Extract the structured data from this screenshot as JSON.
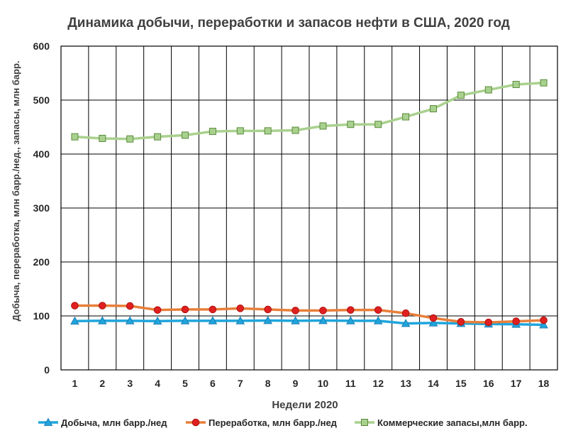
{
  "chart_data": {
    "type": "line",
    "title": "Динамика добычи, переработки и запасов нефти в США, 2020 год",
    "xlabel": "Недели 2020",
    "ylabel": "Добыча, переработка, млн барр./нед., запасы, млн барр.",
    "ylim": [
      0,
      600
    ],
    "yticks": [
      "0",
      "100",
      "200",
      "300",
      "400",
      "500",
      "600"
    ],
    "categories": [
      "1",
      "2",
      "3",
      "4",
      "5",
      "6",
      "7",
      "8",
      "9",
      "10",
      "11",
      "12",
      "13",
      "14",
      "15",
      "16",
      "17",
      "18"
    ],
    "grid": true,
    "legend_position": "bottom",
    "series": [
      {
        "name": "Добыча, млн барр./нед",
        "color": "#1fa5dc",
        "marker": "triangle",
        "values": [
          90.5,
          91,
          91,
          90.5,
          91,
          91,
          91,
          91.5,
          91,
          91.5,
          91,
          91,
          86,
          87,
          86,
          85,
          84.5,
          83.5
        ]
      },
      {
        "name": "Переработка, млн барр./нед",
        "color": "#e87f3a",
        "marker_color": "#e02020",
        "marker": "circle",
        "values": [
          119,
          119,
          118.5,
          111,
          112,
          112,
          114,
          112,
          110,
          110,
          111,
          111,
          105,
          96,
          89,
          88,
          90,
          92
        ]
      },
      {
        "name": "Коммерческие запасы,млн барр.",
        "color": "#a9d18e",
        "marker_color": "#a9d18e",
        "marker": "square",
        "values": [
          432,
          429,
          428,
          432,
          435,
          442,
          443,
          443,
          444,
          452,
          455,
          455,
          469,
          484,
          509,
          519,
          529,
          532
        ]
      }
    ]
  }
}
